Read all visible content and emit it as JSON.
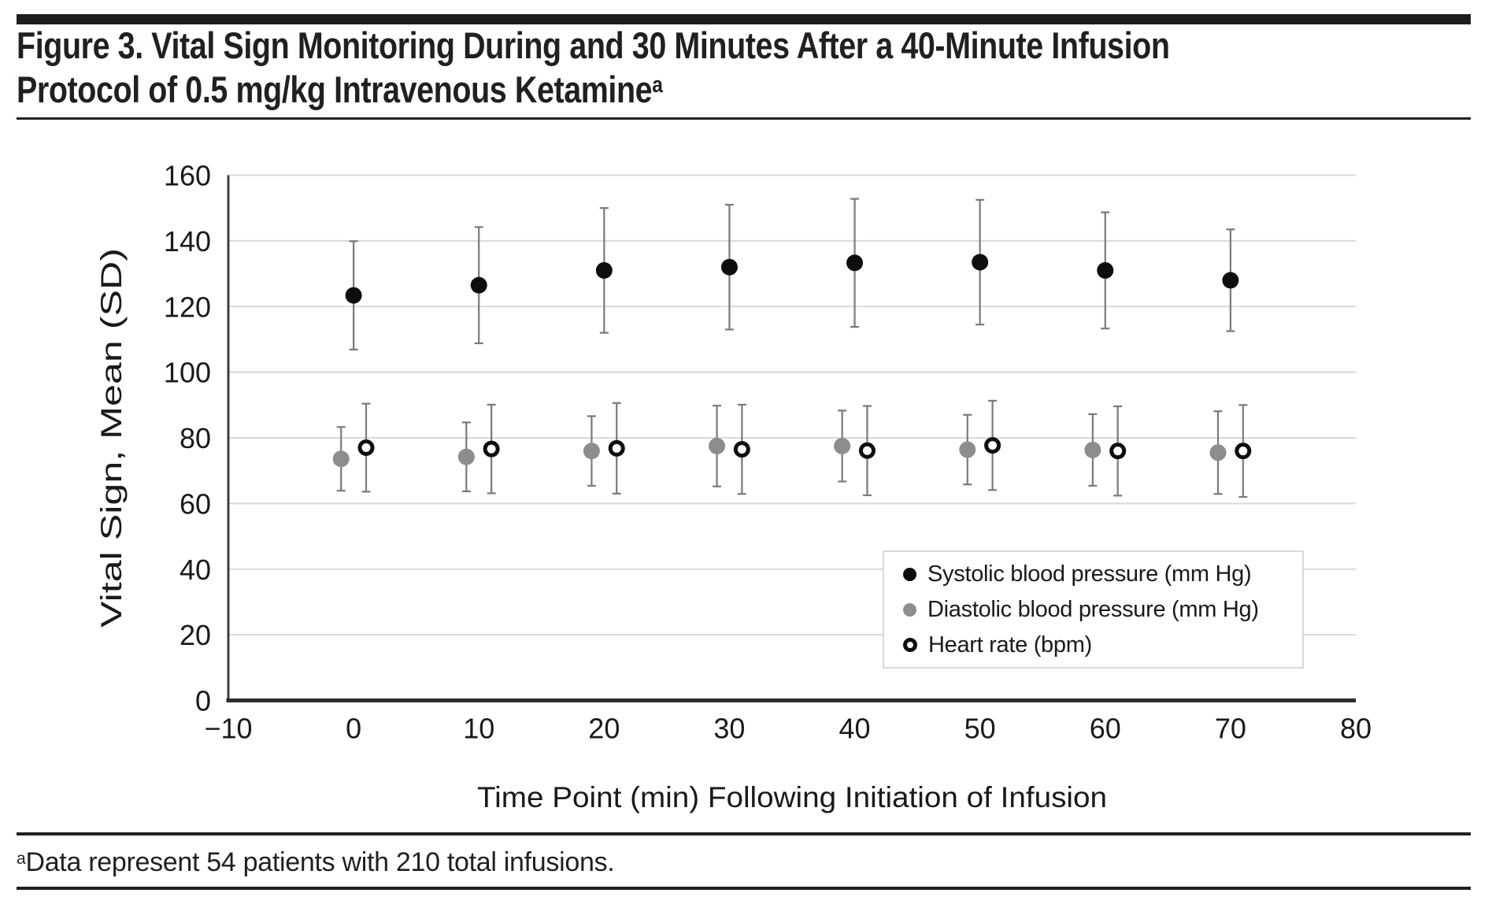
{
  "title": {
    "line1": "Figure 3. Vital Sign Monitoring During and 30 Minutes After a 40-Minute Infusion",
    "line2_main": "Protocol of 0.5 mg/kg Intravenous Ketamine",
    "line2_sup": "a"
  },
  "footnote": {
    "sup": "a",
    "text": "Data represent 54 patients with 210 total infusions."
  },
  "colors": {
    "near_black": "#231f20",
    "marker_black": "#0e0e0e",
    "marker_gray": "#8d8d8d",
    "error_bar_gray": "#7a7a7a",
    "gridline": "#d9d9d9",
    "y_axis_line": "#3f3f3f",
    "x_axis_line": "#2e2e2e",
    "legend_border": "#d9d9d9"
  },
  "chart_data": {
    "type": "scatter",
    "title": "",
    "xlabel": "Time Point (min) Following Initiation of Infusion",
    "ylabel": "Vital Sign, Mean (SD)",
    "xlim": [
      -10,
      80
    ],
    "ylim": [
      0,
      160
    ],
    "x_ticks": [
      -10,
      0,
      10,
      20,
      30,
      40,
      50,
      60,
      70,
      80
    ],
    "x_tick_labels": [
      "−10",
      "0",
      "10",
      "20",
      "30",
      "40",
      "50",
      "60",
      "70",
      "80"
    ],
    "y_ticks": [
      0,
      20,
      40,
      60,
      80,
      100,
      120,
      140,
      160
    ],
    "y_tick_labels": [
      "0",
      "20",
      "40",
      "60",
      "80",
      "100",
      "120",
      "140",
      "160"
    ],
    "grid": "horizontal",
    "legend_position": "inside-lower-right",
    "x": [
      0,
      10,
      20,
      30,
      40,
      50,
      60,
      70
    ],
    "error_bars": "mean ± SD",
    "series": [
      {
        "name": "Systolic blood pressure (mm Hg)",
        "marker": "filled-circle",
        "color": "#0e0e0e",
        "x_offset_min": 0,
        "mean": [
          123.4,
          126.5,
          131.0,
          132.0,
          133.3,
          133.5,
          131.0,
          128.0
        ],
        "sd": [
          16.5,
          17.7,
          19.0,
          19.0,
          19.5,
          19.0,
          17.7,
          15.5
        ]
      },
      {
        "name": "Diastolic blood pressure (mm Hg)",
        "marker": "filled-circle",
        "color": "#8d8d8d",
        "x_offset_min": -1,
        "mean": [
          73.6,
          74.2,
          76.0,
          77.5,
          77.5,
          76.4,
          76.3,
          75.5
        ],
        "sd": [
          9.7,
          10.5,
          10.6,
          12.3,
          10.8,
          10.6,
          10.9,
          12.6
        ]
      },
      {
        "name": "Heart rate (bpm)",
        "marker": "open-circle",
        "color": "#0e0e0e",
        "x_offset_min": 1,
        "mean": [
          77.0,
          76.6,
          76.8,
          76.5,
          76.1,
          77.7,
          76.0,
          76.0
        ],
        "sd": [
          13.4,
          13.5,
          13.8,
          13.6,
          13.6,
          13.6,
          13.6,
          14.0
        ]
      }
    ]
  }
}
